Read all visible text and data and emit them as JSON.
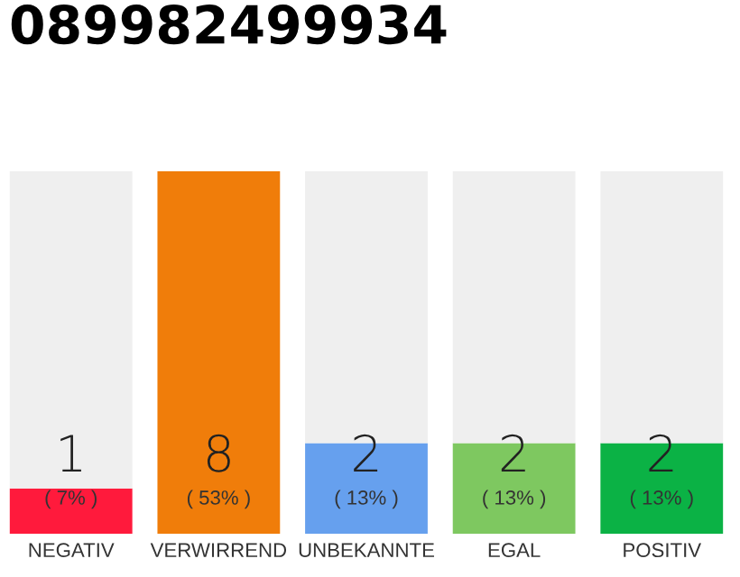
{
  "chart_data": {
    "type": "bar",
    "title": "089982499934",
    "stacked": true,
    "categories": [
      "NEGATIV",
      "VERWIRREND",
      "UNBEKANNTE",
      "EGAL",
      "POSITIV"
    ],
    "series": [
      {
        "colors": [
          "#ff1a3c",
          "#f07d0a",
          "#66a0ee",
          "#7ec860",
          "#0bb245"
        ],
        "values": [
          1,
          8,
          2,
          2,
          2
        ],
        "value_labels": [
          "1\n( 7% )",
          "8\n( 53% )",
          "2\n( 13% )",
          "2\n( 13% )",
          "2\n( 13% )"
        ]
      },
      {
        "color": "#efefef",
        "values": [
          7,
          0,
          6,
          6,
          6
        ]
      }
    ],
    "ylim": [
      0,
      8
    ],
    "tick_labels": "x"
  }
}
